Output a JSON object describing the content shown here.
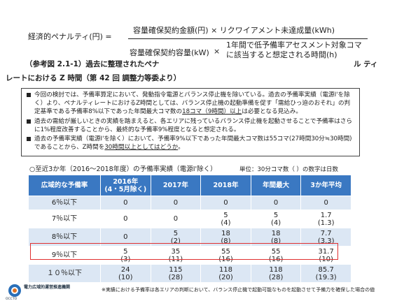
{
  "formula": {
    "lhs": "経済的ペナルティ(円) =",
    "numerator": "容量確保契約金額(円) × リクワイアメント未達成量(kWh)",
    "denominator_left": "容量確保契約容量(kW)",
    "times": "×",
    "denominator_right": "1年間で低予備率アセスメント対象コマに該当すると想定される時間(h)"
  },
  "caption": {
    "line1": "（参考図 2.1-1）過去に整理されたペナ",
    "line1_end": "ル ティ",
    "line2": "レートにおける Z 時間（第 42 回 調整力等委より）"
  },
  "bullets": [
    {
      "text": "今回の検討では、予備率算定において、発動指令電源とバランス停止機を除いている。過去の予備率実績（電源Ⅰ'を除く）より、ペナルティレートにおけるZ時間としては、バランス停止機の起動準備を促す「需給ひっ迫のおそれ」の判定基準である予備率8%以下であった年間最大コマ数の",
      "underline": "18コマ（9時間）以上",
      "after": "は必要となる見込み。"
    },
    {
      "text": "過去の需給が厳しいときの実績を踏まえると、各エリアに残っているバランス停止機を起動させることで予備率はさらに1%程度改善することから、最終的な予備率9%程度となると想定される。"
    },
    {
      "text": "過去の予備率実績（電源Ⅰ'を除く）において、予備率9%以下であった年間最大コマ数は55コマ(27時間30分≒30時間)であることから、Z時間を",
      "underline": "30時間以上としてはどうか",
      "after": "。"
    }
  ],
  "table": {
    "title": "○至近3か年（2016～2018年度）の予備率実績（電源Ⅰ'除く）",
    "unit": "単位：30分コマ数（ ）の数字は日数",
    "headers": [
      "広域的な予備率",
      "2016年\n(4・5月除く)",
      "2017年",
      "2018年",
      "年間最大",
      "3か年平均"
    ],
    "rows": [
      [
        "6％以下",
        [
          "0"
        ],
        [
          "0"
        ],
        [
          "0"
        ],
        [
          "0"
        ],
        [
          "0"
        ]
      ],
      [
        "7％以下",
        [
          "0"
        ],
        [
          "0"
        ],
        [
          "5",
          "(4)"
        ],
        [
          "5",
          "(4)"
        ],
        [
          "1.7",
          "(1.3)"
        ]
      ],
      [
        "8％以下",
        [
          "0"
        ],
        [
          "5",
          "(2)"
        ],
        [
          "18",
          "(8)"
        ],
        [
          "18",
          "(8)"
        ],
        [
          "7.7",
          "(3.3)"
        ]
      ],
      [
        "9％以下",
        [
          "5",
          "(3)"
        ],
        [
          "35",
          "(11)"
        ],
        [
          "55",
          "(16)"
        ],
        [
          "55",
          "(16)"
        ],
        [
          "31.7",
          "(10)"
        ]
      ],
      [
        "１０％以下",
        [
          "24",
          "(10)"
        ],
        [
          "115",
          "(28)"
        ],
        [
          "118",
          "(20)"
        ],
        [
          "118",
          "(28)"
        ],
        [
          "85.7",
          "(19.3)"
        ]
      ]
    ]
  },
  "footer": {
    "org": "電力広域的運営推進機関",
    "abbr": "OCCTO",
    "note": "※実績における予備率は各エリアの判断において、バランス停止機で起動可能なものを起動させて予備力を確保した場合の値"
  }
}
